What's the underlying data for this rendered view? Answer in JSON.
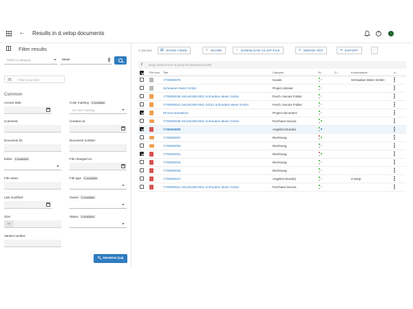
{
  "header": {
    "back_label": "←",
    "title": "Results in d.velop documents"
  },
  "sidebar": {
    "title": "Filter results",
    "category_placeholder": "Select a category",
    "search_value": "Meier",
    "clear_label": "×",
    "filter_properties_placeholder": "Filter properties",
    "section_title": "Common",
    "fields": {
      "access_date": "Access date:",
      "color_marking": "Color marking",
      "color_marking_badge": "1 available",
      "color_marking_placeholder": "No color marking",
      "comment": "Comment:",
      "created_on": "Created on:",
      "document_id": "Document ID:",
      "document_number": "Document number:",
      "editor": "Editor",
      "editor_badge": "2 available",
      "file_changed_on": "File changed on:",
      "file_name": "File name:",
      "file_type": "File type",
      "file_type_badge": "4 available",
      "last_modified": "Last modified:",
      "owner": "Owner",
      "owner_badge": "4 available",
      "size": "Size:",
      "size_unit": "kB",
      "status": "Status",
      "status_badge": "2 available",
      "variant_number": "Variant number:"
    },
    "search_button": "SEARCH (14)"
  },
  "toolbar": {
    "selected": "3 selected",
    "show_items": "SHOW ITEMS",
    "share": "SHARE",
    "download_zip": "DOWNLOAD AS ZIP-FILE",
    "merge_pdf": "MERGE PDF",
    "export": "EXPORT",
    "more": "⋮"
  },
  "grid": {
    "drag_hint": "Drag columns here to group the displayed results",
    "columns": [
      "",
      "File icon",
      "Title",
      "Category",
      "St…",
      "D…",
      "Kundenname",
      "A…"
    ],
    "rows": [
      {
        "checked": false,
        "icon": "gray",
        "title": "Y700000076",
        "category": "Kunde",
        "dots": [
          "#3a3",
          "#ccc",
          "#ccc"
        ],
        "customer": "Schrauben Meier GmbH",
        "highlight": false
      },
      {
        "checked": false,
        "icon": "gray",
        "title": "Schrauben Meier GmbH",
        "category": "Project dossier",
        "dots": [
          "#3a3",
          "#ccc",
          "#ccc"
        ],
        "customer": "",
        "highlight": false
      },
      {
        "checked": false,
        "icon": "orange",
        "title": "Y700000036 SK2AE338-0001 Schrauben Meier GmbH",
        "category": "Purch. Invoice Folder",
        "dots": [
          "#3a3",
          "#ccc",
          "#ccc"
        ],
        "customer": "",
        "highlight": false
      },
      {
        "checked": false,
        "icon": "orange",
        "title": "Y700000021 SK2AE338-0001 10231 Schrauben Meier GmbH",
        "category": "Purch. Invoice Folder",
        "dots": [
          "#3a3",
          "#ccc",
          "#ccc"
        ],
        "customer": "",
        "highlight": false
      },
      {
        "checked": true,
        "icon": "orange",
        "title": "05 Documentation",
        "category": "Project document",
        "dots": [
          "#3a3",
          "#ccc",
          "#ccc"
        ],
        "customer": "",
        "highlight": false
      },
      {
        "checked": false,
        "icon": "mail",
        "title": "Y700000036 SK2AE338-0001 Schrauben Meier GmbH",
        "category": "Purchase Invoice",
        "dots": [
          "#3a3",
          "#3a3",
          "#ccc"
        ],
        "customer": "",
        "highlight": false
      },
      {
        "checked": true,
        "icon": "pdf",
        "title": "Y700000060",
        "category": "Angebot (Kunde)",
        "dots": [
          "#3a3",
          "#2a6fb0",
          "#ccc"
        ],
        "customer": "",
        "highlight": true
      },
      {
        "checked": false,
        "icon": "mail",
        "title": "Y700000057",
        "category": "Rechnung",
        "dots": [
          "#d33",
          "#3a3",
          "#ccc"
        ],
        "customer": "",
        "highlight": false
      },
      {
        "checked": false,
        "icon": "mail",
        "title": "Y700000055",
        "category": "Rechnung",
        "dots": [
          "#3a3",
          "#ccc",
          "#ccc"
        ],
        "customer": "",
        "highlight": false
      },
      {
        "checked": true,
        "icon": "pdf",
        "title": "Y700000051",
        "category": "Rechnung",
        "dots": [
          "#d33",
          "#3a3",
          "#ccc"
        ],
        "customer": "",
        "highlight": false
      },
      {
        "checked": false,
        "icon": "pdf",
        "title": "Y700000040",
        "category": "Rechnung",
        "dots": [
          "#3a3",
          "#ccc",
          "#ccc"
        ],
        "customer": "",
        "highlight": false
      },
      {
        "checked": false,
        "icon": "pdf",
        "title": "Y700000039",
        "category": "Rechnung",
        "dots": [
          "#3a3",
          "#ccc",
          "#ccc"
        ],
        "customer": "",
        "highlight": false
      },
      {
        "checked": false,
        "icon": "pdf",
        "title": "Y700000037",
        "category": "Angebot (Kunde)",
        "dots": [
          "#3a3",
          "#ccc",
          "#ccc"
        ],
        "customer": "d.velop",
        "highlight": false
      },
      {
        "checked": false,
        "icon": "pdf",
        "title": "Y700000021 SK2AE338-0001 Schrauben Meier GmbH",
        "category": "Purchase Invoice",
        "dots": [
          "#3a3",
          "#ccc",
          "#ccc"
        ],
        "customer": "",
        "highlight": false
      }
    ]
  }
}
